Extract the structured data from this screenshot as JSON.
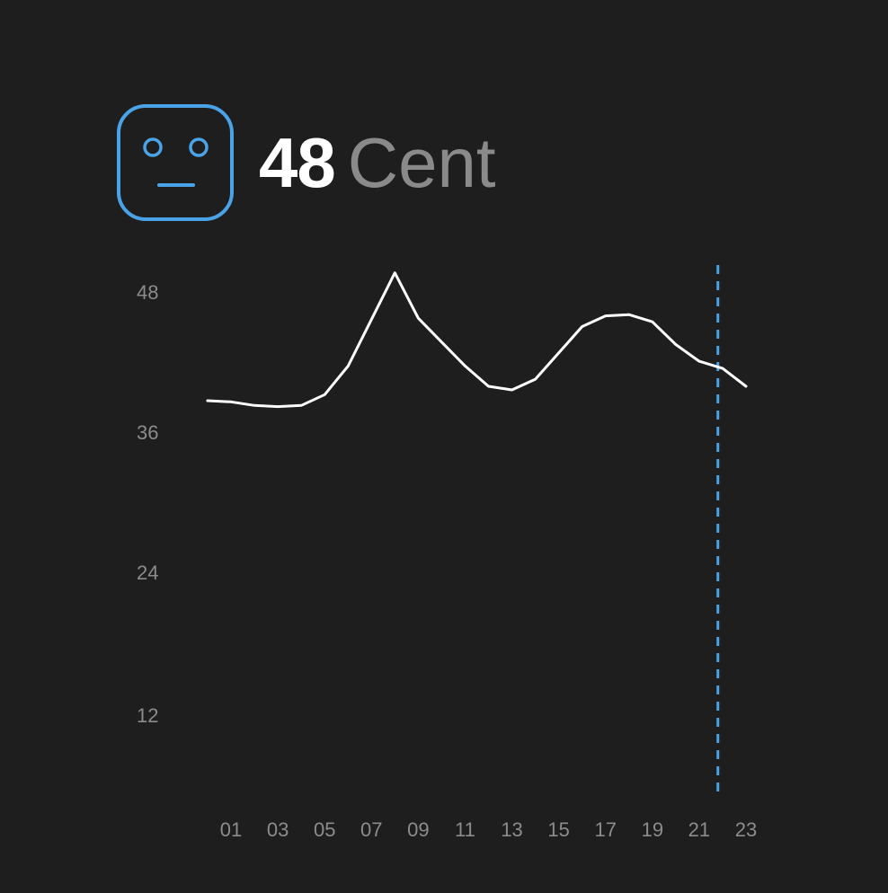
{
  "header": {
    "face_icon": "neutral-face-icon",
    "value": "48",
    "unit": "Cent"
  },
  "colors": {
    "background": "#1e1e1e",
    "accent": "#4aa3e6",
    "line": "#ffffff",
    "tick_text": "#8c8c8c",
    "unit_text": "#8a8a8a"
  },
  "chart_data": {
    "type": "line",
    "title": "",
    "xlabel": "",
    "ylabel": "",
    "y_ticks": [
      "12",
      "24",
      "36",
      "48"
    ],
    "x_ticks": [
      "01",
      "03",
      "05",
      "07",
      "09",
      "11",
      "13",
      "15",
      "17",
      "19",
      "21",
      "23"
    ],
    "x": [
      0,
      1,
      2,
      3,
      4,
      5,
      6,
      7,
      8,
      9,
      10,
      11,
      12,
      13,
      14,
      15,
      16,
      17,
      18,
      19,
      20,
      21,
      22,
      23
    ],
    "series": [
      {
        "values": [
          38.7,
          38.6,
          38.3,
          38.2,
          38.3,
          39.2,
          41.6,
          45.5,
          49.4,
          45.6,
          43.6,
          41.6,
          39.9,
          39.6,
          40.5,
          42.7,
          44.9,
          45.8,
          45.9,
          45.3,
          43.4,
          42.0,
          41.4,
          39.9
        ]
      }
    ],
    "current_hour_marker": 21.8,
    "grid": false
  }
}
